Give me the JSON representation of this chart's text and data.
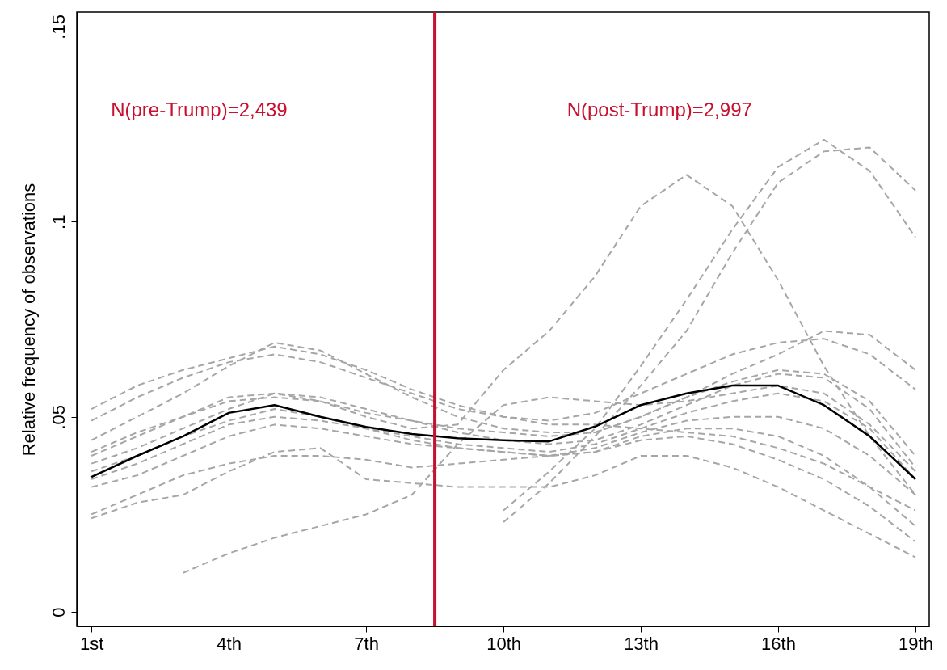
{
  "chart_data": {
    "type": "line",
    "ylabel": "Relative frequency of observations",
    "annotations": [
      "N(pre-Trump)=2,439",
      "N(post-Trump)=2,997"
    ],
    "x": [
      1,
      2,
      3,
      4,
      5,
      6,
      7,
      8,
      9,
      10,
      11,
      12,
      13,
      14,
      15,
      16,
      17,
      18,
      19
    ],
    "xlim": [
      0.68,
      19.3
    ],
    "xticks": [
      {
        "value": 1,
        "label": "1st"
      },
      {
        "value": 4,
        "label": "4th"
      },
      {
        "value": 7,
        "label": "7th"
      },
      {
        "value": 10,
        "label": "10th"
      },
      {
        "value": 13,
        "label": "13th"
      },
      {
        "value": 16,
        "label": "16th"
      },
      {
        "value": 19,
        "label": "19th"
      }
    ],
    "ylim": [
      -0.0037,
      0.1537
    ],
    "yticks": [
      {
        "value": 0,
        "label": "0"
      },
      {
        "value": 0.05,
        "label": ".05"
      },
      {
        "value": 0.1,
        "label": ".1"
      },
      {
        "value": 0.15,
        "label": ".15"
      }
    ],
    "grid": false,
    "marker": "none",
    "ref_lines": [
      {
        "axis": "x",
        "value": 8.5,
        "color": "#c8102e"
      }
    ],
    "series": [
      {
        "color": "#a6a6a6",
        "line_style": "dashed",
        "values": [
          0.052,
          0.058,
          0.062,
          0.065,
          0.068,
          0.066,
          0.062,
          0.057,
          0.053,
          0.05,
          0.048,
          0.048,
          0.047,
          0.046,
          0.045,
          0.042,
          0.038,
          0.032,
          0.026
        ]
      },
      {
        "color": "#a6a6a6",
        "line_style": "dashed",
        "values": [
          0.049,
          0.055,
          0.06,
          0.064,
          0.066,
          0.064,
          0.06,
          0.056,
          0.052,
          0.05,
          0.049,
          0.051,
          0.056,
          0.061,
          0.066,
          0.069,
          0.07,
          0.066,
          0.057
        ]
      },
      {
        "color": "#a6a6a6",
        "line_style": "dashed",
        "values": [
          0.044,
          0.05,
          0.056,
          0.063,
          0.069,
          0.067,
          0.061,
          0.055,
          0.05,
          0.047,
          0.046,
          0.046,
          0.05,
          0.055,
          0.061,
          0.066,
          0.072,
          0.071,
          0.062
        ]
      },
      {
        "color": "#a6a6a6",
        "line_style": "dashed",
        "values": [
          0.041,
          0.046,
          0.05,
          0.054,
          0.055,
          0.054,
          0.051,
          0.049,
          0.047,
          0.046,
          0.045,
          0.046,
          0.05,
          0.055,
          0.059,
          0.062,
          0.061,
          0.054,
          0.04
        ]
      },
      {
        "color": "#a6a6a6",
        "line_style": "dashed",
        "values": [
          0.038,
          0.042,
          0.047,
          0.052,
          0.056,
          0.055,
          0.052,
          0.049,
          0.046,
          0.044,
          0.043,
          0.044,
          0.048,
          0.053,
          0.058,
          0.061,
          0.06,
          0.052,
          0.037
        ]
      },
      {
        "color": "#a6a6a6",
        "line_style": "dashed",
        "values": [
          0.036,
          0.04,
          0.045,
          0.049,
          0.052,
          0.05,
          0.047,
          0.045,
          0.043,
          0.042,
          0.041,
          0.043,
          0.047,
          0.051,
          0.054,
          0.056,
          0.054,
          0.047,
          0.034
        ]
      },
      {
        "color": "#a6a6a6",
        "line_style": "dashed",
        "values": [
          0.034,
          0.038,
          0.043,
          0.048,
          0.05,
          0.049,
          0.047,
          0.044,
          0.042,
          0.041,
          0.04,
          0.042,
          0.046,
          0.049,
          0.05,
          0.05,
          0.047,
          0.04,
          0.03
        ]
      },
      {
        "color": "#a6a6a6",
        "line_style": "dashed",
        "values": [
          0.032,
          0.035,
          0.04,
          0.045,
          0.048,
          0.047,
          0.045,
          0.043,
          0.042,
          0.041,
          0.04,
          0.041,
          0.045,
          0.047,
          0.047,
          0.045,
          0.04,
          0.032,
          0.022
        ]
      },
      {
        "color": "#a6a6a6",
        "line_style": "dashed",
        "values": [
          0.025,
          0.03,
          0.035,
          0.038,
          0.04,
          0.04,
          0.039,
          0.037,
          0.038,
          0.039,
          0.04,
          0.041,
          0.044,
          0.045,
          0.043,
          0.039,
          0.034,
          0.027,
          0.018
        ]
      },
      {
        "color": "#a6a6a6",
        "line_style": "dashed",
        "values": [
          0.024,
          0.028,
          0.03,
          0.036,
          0.041,
          0.042,
          0.034,
          0.033,
          0.032,
          0.032,
          0.032,
          0.035,
          0.04,
          0.04,
          0.037,
          0.032,
          0.026,
          0.02,
          0.014
        ]
      },
      {
        "color": "#a6a6a6",
        "line_style": "dashed",
        "values": [
          null,
          null,
          0.01,
          0.015,
          0.019,
          0.022,
          0.025,
          0.03,
          0.043,
          0.053,
          0.055,
          0.054,
          0.053,
          0.054,
          0.056,
          0.058,
          0.056,
          0.048,
          0.036
        ]
      },
      {
        "color": "#a6a6a6",
        "line_style": "dashed",
        "values": [
          0.04,
          0.045,
          0.05,
          0.055,
          0.056,
          0.054,
          0.05,
          0.047,
          0.048,
          0.062,
          0.072,
          0.086,
          0.104,
          0.112,
          0.104,
          0.085,
          0.063,
          0.045,
          0.03
        ]
      },
      {
        "color": "#a6a6a6",
        "line_style": "dashed",
        "values": [
          null,
          null,
          null,
          null,
          null,
          null,
          null,
          null,
          null,
          0.026,
          0.036,
          0.047,
          0.063,
          0.08,
          0.098,
          0.114,
          0.121,
          0.113,
          0.096
        ]
      },
      {
        "color": "#a6a6a6",
        "line_style": "dashed",
        "values": [
          null,
          null,
          null,
          null,
          null,
          null,
          null,
          null,
          null,
          0.023,
          0.033,
          0.045,
          0.058,
          0.072,
          0.092,
          0.11,
          0.118,
          0.119,
          0.108
        ]
      },
      {
        "color": "#000000",
        "line_style": "solid",
        "values": [
          0.0346,
          0.04,
          0.045,
          0.051,
          0.053,
          0.05,
          0.0474,
          0.0456,
          0.0445,
          0.044,
          0.0437,
          0.0475,
          0.053,
          0.056,
          0.058,
          0.058,
          0.053,
          0.045,
          0.034
        ]
      }
    ]
  }
}
